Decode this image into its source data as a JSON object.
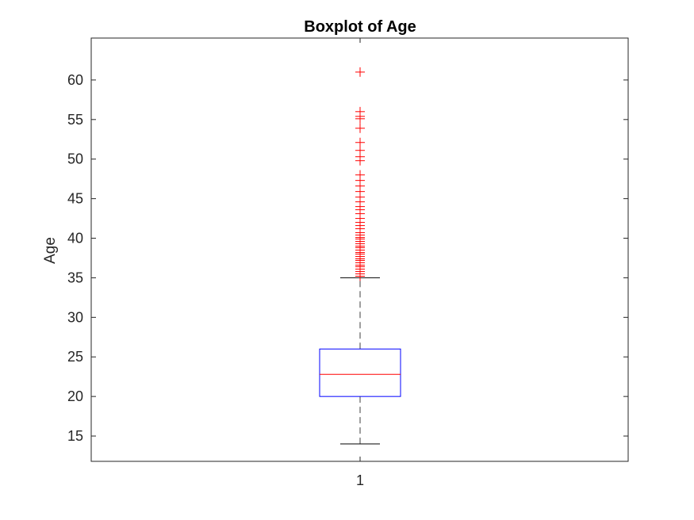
{
  "chart_data": {
    "type": "boxplot",
    "title": "Boxplot of Age",
    "xlabel": "",
    "ylabel": "Age",
    "categories": [
      "1"
    ],
    "ylim": [
      11.8,
      65.3
    ],
    "yticks": [
      15,
      20,
      25,
      30,
      35,
      40,
      45,
      50,
      55,
      60
    ],
    "grid": false,
    "box": {
      "lower_whisker": 14,
      "q1": 20,
      "median": 22.8,
      "q3": 26,
      "upper_whisker": 35
    },
    "outliers": [
      35.2,
      35.5,
      35.8,
      36.1,
      36.4,
      36.6,
      36.9,
      37.2,
      37.4,
      37.7,
      38.0,
      38.2,
      38.5,
      38.8,
      39.0,
      39.3,
      39.6,
      39.9,
      40.1,
      40.4,
      40.7,
      41.2,
      41.6,
      42.0,
      42.5,
      43.1,
      43.6,
      44.0,
      44.6,
      45.2,
      45.9,
      46.6,
      47.3,
      48.0,
      49.8,
      50.3,
      51.1,
      52.1,
      53.9,
      55.1,
      55.4,
      56.0,
      61.0
    ],
    "colors": {
      "box": "#0000ff",
      "median": "#ff0000",
      "outlier": "#ff0000",
      "whisker": "#000000",
      "axes": "#262626"
    }
  }
}
